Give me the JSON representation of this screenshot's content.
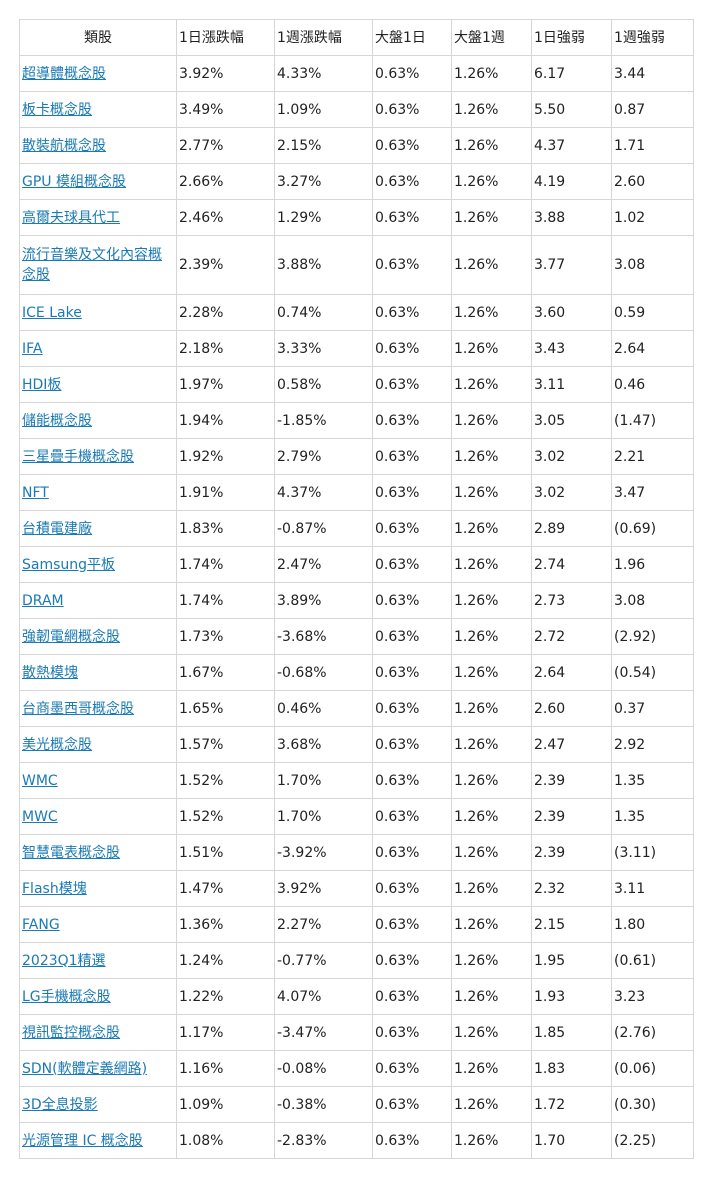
{
  "headers": [
    "類股",
    "1日漲跌幅",
    "1週漲跌幅",
    "大盤1日",
    "大盤1週",
    "1日強弱",
    "1週強弱"
  ],
  "rows": [
    {
      "name": "超導體概念股",
      "d1": "3.92%",
      "w1": "4.33%",
      "m1": "0.63%",
      "mw": "1.26%",
      "s1": "6.17",
      "sw": "3.44"
    },
    {
      "name": "板卡概念股",
      "d1": "3.49%",
      "w1": "1.09%",
      "m1": "0.63%",
      "mw": "1.26%",
      "s1": "5.50",
      "sw": "0.87"
    },
    {
      "name": "散裝航概念股",
      "d1": "2.77%",
      "w1": "2.15%",
      "m1": "0.63%",
      "mw": "1.26%",
      "s1": "4.37",
      "sw": "1.71"
    },
    {
      "name": "GPU 模組概念股",
      "d1": "2.66%",
      "w1": "3.27%",
      "m1": "0.63%",
      "mw": "1.26%",
      "s1": "4.19",
      "sw": "2.60"
    },
    {
      "name": "高爾夫球具代工",
      "d1": "2.46%",
      "w1": "1.29%",
      "m1": "0.63%",
      "mw": "1.26%",
      "s1": "3.88",
      "sw": "1.02"
    },
    {
      "name": "流行音樂及文化內容概念股",
      "d1": "2.39%",
      "w1": "3.88%",
      "m1": "0.63%",
      "mw": "1.26%",
      "s1": "3.77",
      "sw": "3.08"
    },
    {
      "name": "ICE Lake",
      "d1": "2.28%",
      "w1": "0.74%",
      "m1": "0.63%",
      "mw": "1.26%",
      "s1": "3.60",
      "sw": "0.59"
    },
    {
      "name": "IFA",
      "d1": "2.18%",
      "w1": "3.33%",
      "m1": "0.63%",
      "mw": "1.26%",
      "s1": "3.43",
      "sw": "2.64"
    },
    {
      "name": "HDI板",
      "d1": "1.97%",
      "w1": "0.58%",
      "m1": "0.63%",
      "mw": "1.26%",
      "s1": "3.11",
      "sw": "0.46"
    },
    {
      "name": "儲能概念股",
      "d1": "1.94%",
      "w1": "-1.85%",
      "m1": "0.63%",
      "mw": "1.26%",
      "s1": "3.05",
      "sw": "(1.47)"
    },
    {
      "name": "三星疊手機概念股",
      "d1": "1.92%",
      "w1": "2.79%",
      "m1": "0.63%",
      "mw": "1.26%",
      "s1": "3.02",
      "sw": "2.21"
    },
    {
      "name": "NFT",
      "d1": "1.91%",
      "w1": "4.37%",
      "m1": "0.63%",
      "mw": "1.26%",
      "s1": "3.02",
      "sw": "3.47"
    },
    {
      "name": "台積電建廠",
      "d1": "1.83%",
      "w1": "-0.87%",
      "m1": "0.63%",
      "mw": "1.26%",
      "s1": "2.89",
      "sw": "(0.69)"
    },
    {
      "name": "Samsung平板",
      "d1": "1.74%",
      "w1": "2.47%",
      "m1": "0.63%",
      "mw": "1.26%",
      "s1": "2.74",
      "sw": "1.96"
    },
    {
      "name": "DRAM",
      "d1": "1.74%",
      "w1": "3.89%",
      "m1": "0.63%",
      "mw": "1.26%",
      "s1": "2.73",
      "sw": "3.08"
    },
    {
      "name": "強韌電網概念股",
      "d1": "1.73%",
      "w1": "-3.68%",
      "m1": "0.63%",
      "mw": "1.26%",
      "s1": "2.72",
      "sw": "(2.92)"
    },
    {
      "name": "散熱模塊",
      "d1": "1.67%",
      "w1": "-0.68%",
      "m1": "0.63%",
      "mw": "1.26%",
      "s1": "2.64",
      "sw": "(0.54)"
    },
    {
      "name": "台商墨西哥概念股",
      "d1": "1.65%",
      "w1": "0.46%",
      "m1": "0.63%",
      "mw": "1.26%",
      "s1": "2.60",
      "sw": "0.37"
    },
    {
      "name": "美光概念股",
      "d1": "1.57%",
      "w1": "3.68%",
      "m1": "0.63%",
      "mw": "1.26%",
      "s1": "2.47",
      "sw": "2.92"
    },
    {
      "name": "WMC",
      "d1": "1.52%",
      "w1": "1.70%",
      "m1": "0.63%",
      "mw": "1.26%",
      "s1": "2.39",
      "sw": "1.35"
    },
    {
      "name": "MWC",
      "d1": "1.52%",
      "w1": "1.70%",
      "m1": "0.63%",
      "mw": "1.26%",
      "s1": "2.39",
      "sw": "1.35"
    },
    {
      "name": "智慧電表概念股",
      "d1": "1.51%",
      "w1": "-3.92%",
      "m1": "0.63%",
      "mw": "1.26%",
      "s1": "2.39",
      "sw": "(3.11)"
    },
    {
      "name": "Flash模塊",
      "d1": "1.47%",
      "w1": "3.92%",
      "m1": "0.63%",
      "mw": "1.26%",
      "s1": "2.32",
      "sw": "3.11"
    },
    {
      "name": "FANG",
      "d1": "1.36%",
      "w1": "2.27%",
      "m1": "0.63%",
      "mw": "1.26%",
      "s1": "2.15",
      "sw": "1.80"
    },
    {
      "name": "2023Q1精選",
      "d1": "1.24%",
      "w1": "-0.77%",
      "m1": "0.63%",
      "mw": "1.26%",
      "s1": "1.95",
      "sw": "(0.61)"
    },
    {
      "name": "LG手機概念股",
      "d1": "1.22%",
      "w1": "4.07%",
      "m1": "0.63%",
      "mw": "1.26%",
      "s1": "1.93",
      "sw": "3.23"
    },
    {
      "name": "視訊監控概念股",
      "d1": "1.17%",
      "w1": "-3.47%",
      "m1": "0.63%",
      "mw": "1.26%",
      "s1": "1.85",
      "sw": "(2.76)"
    },
    {
      "name": "SDN(軟體定義網路)",
      "d1": "1.16%",
      "w1": "-0.08%",
      "m1": "0.63%",
      "mw": "1.26%",
      "s1": "1.83",
      "sw": "(0.06)"
    },
    {
      "name": "3D全息投影",
      "d1": "1.09%",
      "w1": "-0.38%",
      "m1": "0.63%",
      "mw": "1.26%",
      "s1": "1.72",
      "sw": "(0.30)"
    },
    {
      "name": "光源管理 IC 概念股",
      "d1": "1.08%",
      "w1": "-2.83%",
      "m1": "0.63%",
      "mw": "1.26%",
      "s1": "1.70",
      "sw": "(2.25)"
    }
  ]
}
